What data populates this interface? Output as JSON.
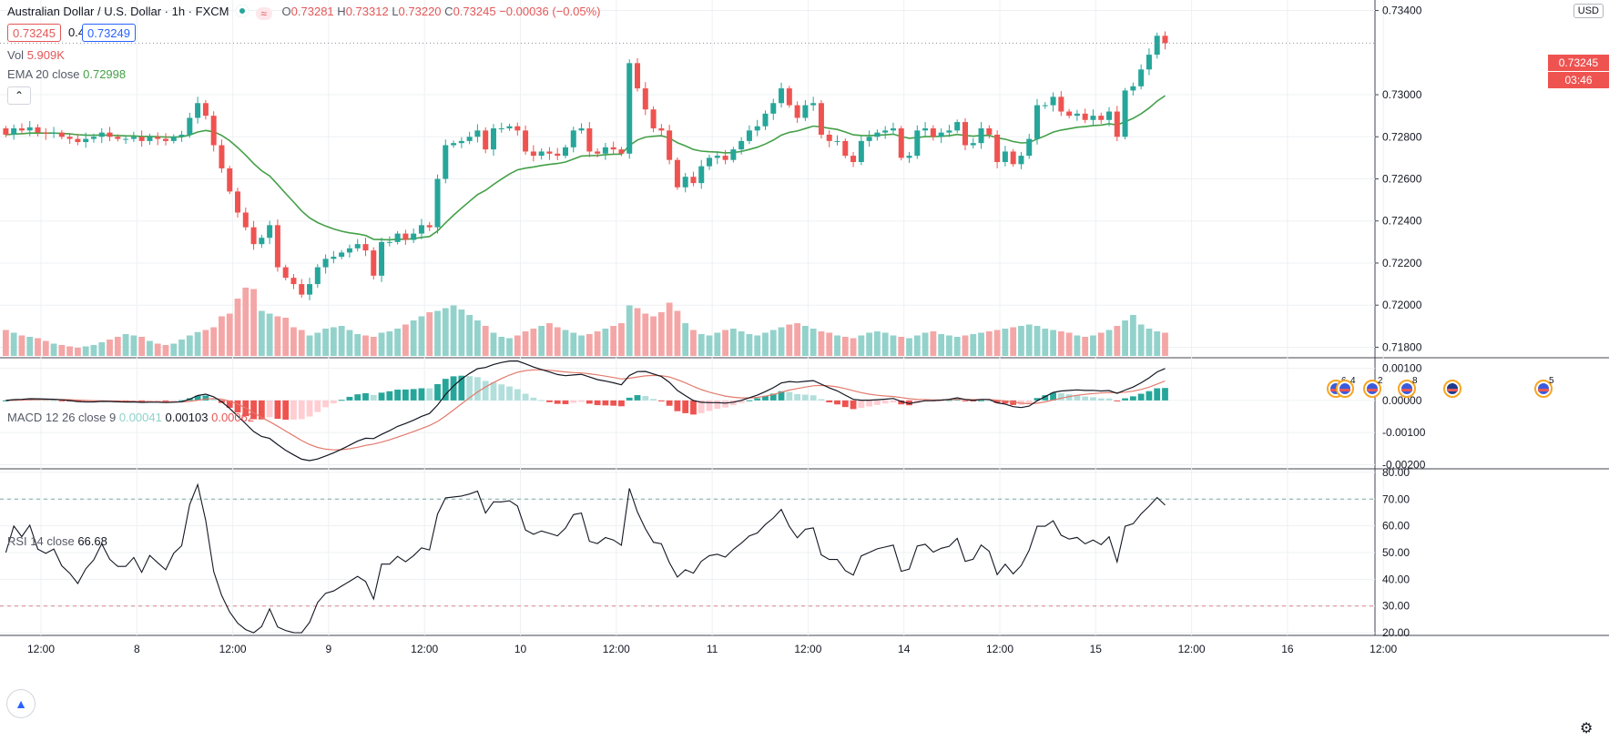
{
  "header": {
    "symbol": "Australian Dollar / U.S. Dollar · 1h · FXCM",
    "ohlc": {
      "o_label": "O",
      "o": "0.73281",
      "h_label": "H",
      "h": "0.73312",
      "l_label": "L",
      "l": "0.73220",
      "c_label": "C",
      "c": "0.73245",
      "change": "−0.00036 (−0.05%)"
    },
    "bid": "0.73245",
    "spread": "0.4",
    "ask": "0.73249",
    "vol_label": "Vol",
    "vol_value": "5.909K",
    "ema_label": "EMA 20 close",
    "ema_value": "0.72998",
    "collapse_icon": "chevron-up-icon",
    "wave_icon": "≈"
  },
  "currency_label": "USD",
  "price_tag": {
    "price": "0.73245",
    "countdown": "03:46"
  },
  "macd_legend": {
    "label": "MACD 12 26 close 9",
    "hist": "0.00041",
    "macd": "0.00103",
    "signal": "0.00062"
  },
  "rsi_legend": {
    "label": "RSI 14 close",
    "value": "66.68"
  },
  "colors": {
    "up": "#26a69a",
    "down": "#ef5350",
    "vol_up": "#93d2cb",
    "vol_down": "#f4a6a6",
    "ema": "#43a047",
    "macd": "#131722",
    "signal": "#e27a6c",
    "hist_up_strong": "#26a69a",
    "hist_up_weak": "#b2dfdb",
    "hist_down_strong": "#ef5350",
    "hist_down_weak": "#ffcdd2",
    "rsi": "#131722",
    "grid": "#eef0f3"
  },
  "events": [
    {
      "icon": "us-flag-icon",
      "label": "6"
    },
    {
      "icon": "us-flag-icon",
      "label": "4"
    },
    {
      "icon": "us-flag-icon",
      "label": "2"
    },
    {
      "icon": "us-flag-icon",
      "label": "8"
    },
    {
      "icon": "au-flag-icon",
      "label": ""
    },
    {
      "icon": "us-flag-icon",
      "label": "5"
    }
  ],
  "chart_data": [
    {
      "type": "candlestick",
      "title": "Australian Dollar / U.S. Dollar · 1h · FXCM",
      "x_ticks": [
        "12:00",
        "8",
        "12:00",
        "9",
        "12:00",
        "10",
        "12:00",
        "11",
        "12:00",
        "14",
        "12:00",
        "15",
        "12:00",
        "16",
        "12:00"
      ],
      "y_ticks": [
        "0.73400",
        "0.73000",
        "0.72800",
        "0.72600",
        "0.72400",
        "0.72200",
        "0.72000",
        "0.71800"
      ],
      "ylim": [
        0.7175,
        0.7345
      ],
      "last_price": 0.73245,
      "close": [
        0.7281,
        0.7284,
        0.7283,
        0.72845,
        0.7282,
        0.72815,
        0.7282,
        0.728,
        0.7279,
        0.72775,
        0.7279,
        0.728,
        0.7282,
        0.728,
        0.7279,
        0.7279,
        0.728,
        0.7278,
        0.728,
        0.7279,
        0.7278,
        0.728,
        0.7281,
        0.7289,
        0.7296,
        0.729,
        0.7276,
        0.7265,
        0.7254,
        0.7244,
        0.7237,
        0.7229,
        0.7232,
        0.7238,
        0.7218,
        0.7213,
        0.721,
        0.7205,
        0.721,
        0.7218,
        0.7222,
        0.7223,
        0.7225,
        0.7227,
        0.7229,
        0.7226,
        0.7214,
        0.723,
        0.723,
        0.7234,
        0.7231,
        0.7234,
        0.7238,
        0.7237,
        0.726,
        0.7276,
        0.7277,
        0.7278,
        0.728,
        0.7283,
        0.7274,
        0.7284,
        0.7284,
        0.7285,
        0.7283,
        0.7273,
        0.7271,
        0.7273,
        0.7272,
        0.7271,
        0.7275,
        0.7283,
        0.7284,
        0.7273,
        0.7272,
        0.7275,
        0.7274,
        0.7272,
        0.7315,
        0.7303,
        0.7293,
        0.7284,
        0.7283,
        0.7269,
        0.7256,
        0.7261,
        0.7258,
        0.7266,
        0.727,
        0.7271,
        0.7269,
        0.7274,
        0.7278,
        0.7283,
        0.7285,
        0.7291,
        0.7296,
        0.7303,
        0.7295,
        0.7289,
        0.7295,
        0.7296,
        0.7281,
        0.7278,
        0.7278,
        0.7271,
        0.7268,
        0.7278,
        0.728,
        0.7282,
        0.7283,
        0.7284,
        0.727,
        0.7271,
        0.7283,
        0.7284,
        0.728,
        0.7282,
        0.7283,
        0.7287,
        0.7276,
        0.7277,
        0.7284,
        0.7281,
        0.7268,
        0.7273,
        0.7267,
        0.7271,
        0.7279,
        0.7295,
        0.7295,
        0.7299,
        0.7292,
        0.729,
        0.7291,
        0.7288,
        0.729,
        0.7288,
        0.7292,
        0.728,
        0.7302,
        0.7304,
        0.7312,
        0.7319,
        0.7328,
        0.73245
      ],
      "volume_relative": [
        0.38,
        0.34,
        0.3,
        0.28,
        0.26,
        0.22,
        0.18,
        0.16,
        0.14,
        0.12,
        0.14,
        0.16,
        0.2,
        0.24,
        0.28,
        0.32,
        0.3,
        0.28,
        0.22,
        0.18,
        0.16,
        0.18,
        0.24,
        0.3,
        0.35,
        0.38,
        0.42,
        0.58,
        0.62,
        0.84,
        1.0,
        0.98,
        0.66,
        0.62,
        0.58,
        0.56,
        0.42,
        0.38,
        0.3,
        0.34,
        0.4,
        0.42,
        0.44,
        0.38,
        0.32,
        0.3,
        0.28,
        0.34,
        0.36,
        0.4,
        0.46,
        0.52,
        0.58,
        0.64,
        0.66,
        0.7,
        0.74,
        0.68,
        0.6,
        0.52,
        0.44,
        0.34,
        0.28,
        0.26,
        0.3,
        0.36,
        0.4,
        0.44,
        0.48,
        0.42,
        0.38,
        0.34,
        0.3,
        0.32,
        0.36,
        0.4,
        0.44,
        0.48,
        0.74,
        0.7,
        0.62,
        0.58,
        0.64,
        0.78,
        0.66,
        0.48,
        0.38,
        0.32,
        0.3,
        0.34,
        0.38,
        0.4,
        0.36,
        0.32,
        0.3,
        0.34,
        0.38,
        0.42,
        0.46,
        0.48,
        0.44,
        0.4,
        0.36,
        0.34,
        0.3,
        0.28,
        0.26,
        0.3,
        0.34,
        0.36,
        0.34,
        0.3,
        0.28,
        0.26,
        0.3,
        0.34,
        0.36,
        0.32,
        0.3,
        0.28,
        0.3,
        0.32,
        0.34,
        0.36,
        0.38,
        0.4,
        0.42,
        0.44,
        0.46,
        0.44,
        0.4,
        0.38,
        0.36,
        0.34,
        0.3,
        0.28,
        0.3,
        0.34,
        0.38,
        0.44,
        0.52,
        0.6,
        0.46,
        0.4,
        0.36,
        0.34
      ]
    },
    {
      "type": "line",
      "title": "MACD 12 26 close 9",
      "y_ticks": [
        "0.00100",
        "0.00000",
        "-0.00100",
        "-0.00200"
      ],
      "ylim": [
        -0.0021,
        0.0013
      ],
      "series": [
        "macd",
        "signal",
        "histogram"
      ]
    },
    {
      "type": "line",
      "title": "RSI 14 close",
      "y_ticks": [
        "80.00",
        "70.00",
        "60.00",
        "50.00",
        "40.00",
        "30.00",
        "20.00"
      ],
      "ylim": [
        19,
        81
      ],
      "bands": [
        70,
        30
      ]
    }
  ]
}
